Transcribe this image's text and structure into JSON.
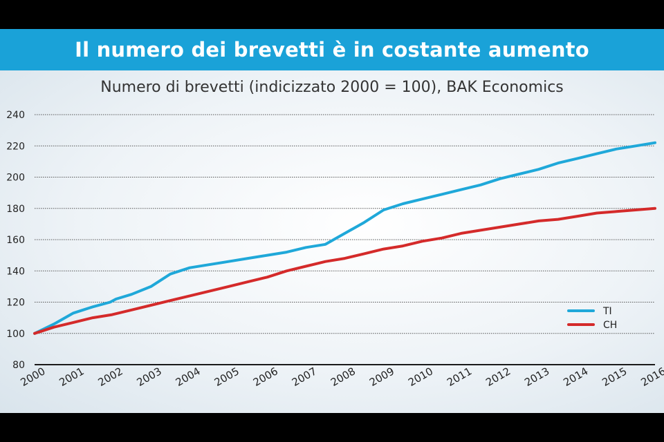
{
  "banner": {
    "title": "Il numero dei brevetti è in costante aumento"
  },
  "chart_data": {
    "type": "line",
    "title": "Numero di brevetti (indicizzato 2000 = 100), BAK Economics",
    "xlabel": "",
    "ylabel": "",
    "ylim": [
      80,
      240
    ],
    "yticks": [
      80,
      100,
      120,
      140,
      160,
      180,
      200,
      220,
      240
    ],
    "xlim": [
      2000,
      2016
    ],
    "xticks": [
      "2000",
      "2001",
      "2002",
      "2003",
      "2004",
      "2005",
      "2006",
      "2007",
      "2008",
      "2009",
      "2010",
      "2011",
      "2012",
      "2013",
      "2014",
      "2015",
      "2016"
    ],
    "grid": true,
    "legend": "lower-right",
    "series": [
      {
        "name": "TI",
        "color": "#1fa8d9",
        "x": [
          2000,
          2000.5,
          2001,
          2001.5,
          2001.95,
          2002.1,
          2002.5,
          2003,
          2003.5,
          2004,
          2004.5,
          2005,
          2005.5,
          2006,
          2006.5,
          2007,
          2007.5,
          2008,
          2008.5,
          2009,
          2009.5,
          2010,
          2010.5,
          2011,
          2011.5,
          2012,
          2012.5,
          2013,
          2013.5,
          2014,
          2014.5,
          2015,
          2015.5,
          2016
        ],
        "values": [
          100,
          106,
          113,
          117,
          120,
          122,
          125,
          130,
          138,
          142,
          144,
          146,
          148,
          150,
          152,
          155,
          157,
          164,
          171,
          179,
          183,
          186,
          189,
          192,
          195,
          199,
          202,
          205,
          209,
          212,
          215,
          218,
          220,
          222
        ]
      },
      {
        "name": "CH",
        "color": "#d42a2a",
        "x": [
          2000,
          2000.5,
          2001,
          2001.5,
          2002,
          2002.5,
          2003,
          2003.5,
          2004,
          2004.5,
          2005,
          2005.5,
          2006,
          2006.5,
          2007,
          2007.5,
          2008,
          2008.5,
          2009,
          2009.5,
          2010,
          2010.5,
          2011,
          2011.5,
          2012,
          2012.5,
          2013,
          2013.5,
          2014,
          2014.5,
          2015,
          2015.5,
          2016
        ],
        "values": [
          100,
          104,
          107,
          110,
          112,
          115,
          118,
          121,
          124,
          127,
          130,
          133,
          136,
          140,
          143,
          146,
          148,
          151,
          154,
          156,
          159,
          161,
          164,
          166,
          168,
          170,
          172,
          173,
          175,
          177,
          178,
          179,
          180
        ]
      }
    ]
  }
}
